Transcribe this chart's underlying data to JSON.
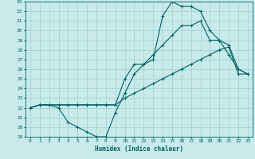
{
  "xlabel": "Humidex (Indice chaleur)",
  "bg_color": "#c8eaea",
  "line_color": "#006060",
  "grid_color": "#a0d0d0",
  "xlim": [
    -0.5,
    23.5
  ],
  "ylim": [
    19,
    33
  ],
  "xticks": [
    0,
    1,
    2,
    3,
    4,
    5,
    6,
    7,
    8,
    9,
    10,
    11,
    12,
    13,
    14,
    15,
    16,
    17,
    18,
    19,
    20,
    21,
    22,
    23
  ],
  "yticks": [
    19,
    20,
    21,
    22,
    23,
    24,
    25,
    26,
    27,
    28,
    29,
    30,
    31,
    32,
    33
  ],
  "line1_x": [
    0,
    1,
    2,
    3,
    4,
    5,
    6,
    7,
    8,
    9,
    10,
    11,
    12,
    13,
    14,
    15,
    16,
    17,
    18,
    19,
    20,
    21,
    22,
    23
  ],
  "line1_y": [
    22.0,
    22.3,
    22.3,
    22.3,
    22.3,
    22.3,
    22.3,
    22.3,
    22.3,
    22.3,
    23.0,
    23.5,
    24.0,
    24.5,
    25.0,
    25.5,
    26.0,
    26.5,
    27.0,
    27.5,
    28.0,
    28.3,
    25.5,
    25.5
  ],
  "line2_x": [
    0,
    1,
    2,
    3,
    4,
    5,
    6,
    7,
    8,
    9,
    10,
    11,
    12,
    13,
    14,
    15,
    16,
    17,
    18,
    19,
    20,
    21,
    22,
    23
  ],
  "line2_y": [
    22.0,
    22.3,
    22.3,
    22.0,
    20.5,
    20.0,
    19.5,
    19.0,
    19.0,
    21.5,
    23.5,
    25.5,
    26.5,
    27.0,
    31.5,
    33.0,
    32.5,
    32.5,
    32.0,
    30.0,
    29.0,
    28.5,
    26.0,
    25.5
  ],
  "line3_x": [
    0,
    1,
    2,
    3,
    4,
    5,
    6,
    7,
    8,
    9,
    10,
    11,
    12,
    13,
    14,
    15,
    16,
    17,
    18,
    19,
    20,
    21,
    22,
    23
  ],
  "line3_y": [
    22.0,
    22.3,
    22.3,
    22.3,
    22.3,
    22.3,
    22.3,
    22.3,
    22.3,
    22.3,
    25.0,
    26.5,
    26.5,
    27.5,
    28.5,
    29.5,
    30.5,
    30.5,
    31.0,
    29.0,
    29.0,
    27.5,
    26.0,
    25.5
  ]
}
